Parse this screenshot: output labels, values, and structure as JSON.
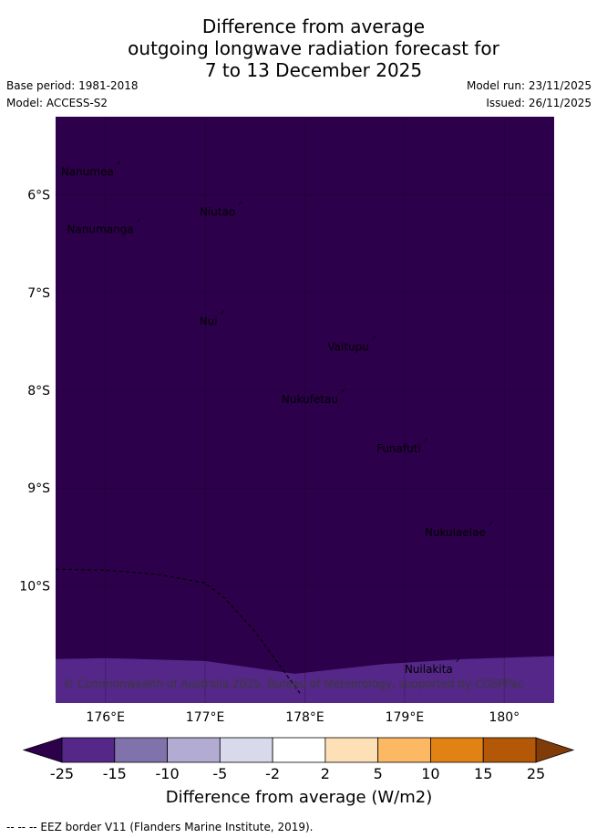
{
  "header": {
    "title_lines": [
      "Difference from average",
      "outgoing longwave radiation forecast for",
      "7 to 13 December 2025"
    ],
    "base_period": "Base period: 1981-2018",
    "model": "Model: ACCESS-S2",
    "model_run": "Model run: 23/11/2025",
    "issued": "Issued: 26/11/2025"
  },
  "chart_data": {
    "type": "heatmap",
    "xlim": [
      175.5,
      180.5
    ],
    "ylim": [
      -11.2,
      -5.2
    ],
    "x_ticks": [
      {
        "value": 176,
        "label": "176°E"
      },
      {
        "value": 177,
        "label": "177°E"
      },
      {
        "value": 178,
        "label": "178°E"
      },
      {
        "value": 179,
        "label": "179°E"
      },
      {
        "value": 180,
        "label": "180°"
      }
    ],
    "y_ticks": [
      {
        "value": -6,
        "label": "6°S"
      },
      {
        "value": -7,
        "label": "7°S"
      },
      {
        "value": -8,
        "label": "8°S"
      },
      {
        "value": -9,
        "label": "9°S"
      },
      {
        "value": -10,
        "label": "10°S"
      }
    ],
    "grid": true,
    "field": {
      "dominant_category": "below -25",
      "southern_band_category": "-25 to -15",
      "southern_band_boundary": [
        [
          175.5,
          -10.75
        ],
        [
          176.0,
          -10.74
        ],
        [
          177.0,
          -10.77
        ],
        [
          177.9,
          -10.9
        ],
        [
          178.8,
          -10.8
        ],
        [
          179.6,
          -10.75
        ],
        [
          180.5,
          -10.72
        ]
      ]
    },
    "eez_border": [
      [
        175.5,
        -9.83
      ],
      [
        176.0,
        -9.84
      ],
      [
        176.5,
        -9.88
      ],
      [
        177.0,
        -9.97
      ],
      [
        177.2,
        -10.13
      ],
      [
        177.5,
        -10.47
      ],
      [
        177.95,
        -11.1
      ]
    ],
    "places": [
      {
        "name": "Nanumea",
        "lon": 176.12,
        "lat": -5.69
      },
      {
        "name": "Niutao",
        "lon": 177.34,
        "lat": -6.1
      },
      {
        "name": "Nanumanga",
        "lon": 176.32,
        "lat": -6.28
      },
      {
        "name": "Nui",
        "lon": 177.16,
        "lat": -7.22
      },
      {
        "name": "Vaitupu",
        "lon": 178.68,
        "lat": -7.48
      },
      {
        "name": "Nukufetau",
        "lon": 178.37,
        "lat": -8.02
      },
      {
        "name": "Funafuti",
        "lon": 179.2,
        "lat": -8.52
      },
      {
        "name": "Nukulaelae",
        "lon": 179.85,
        "lat": -9.38
      },
      {
        "name": "Nuilakita",
        "lon": 179.52,
        "lat": -10.78
      }
    ],
    "copyright": "© Commonwealth of Australia 2025, Bureau of Meteorology, supported by COSPPac",
    "colorbar": {
      "label": "Difference from average (W/m2)",
      "ticks": [
        "-25",
        "-15",
        "-10",
        "-5",
        "-2",
        "2",
        "5",
        "10",
        "15",
        "25"
      ],
      "under_color": "#2d004b",
      "over_color": "#7f3b08",
      "colors": [
        "#542788",
        "#8073ac",
        "#b2abd2",
        "#d8daeb",
        "#ffffff",
        "#fee0b6",
        "#fdb863",
        "#e08214",
        "#b35806"
      ]
    }
  },
  "footnote": "--  --  -- EEZ border V11 (Flanders Marine Institute, 2019)."
}
